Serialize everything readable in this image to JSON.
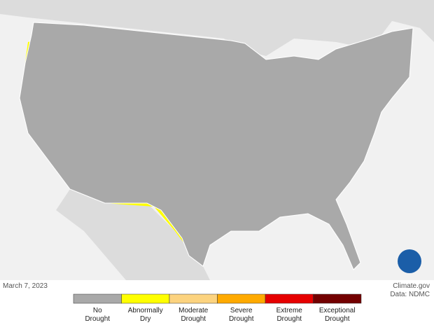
{
  "date": "March 7, 2023",
  "credit": "Climate.gov",
  "source": "Data: NDMC",
  "legend": [
    {
      "lines": [
        "No",
        "Drought"
      ],
      "color": "#a9a9a9"
    },
    {
      "lines": [
        "Abnormally",
        "Dry"
      ],
      "color": "#ffff00"
    },
    {
      "lines": [
        "Moderate",
        "Drought"
      ],
      "color": "#fcd37f"
    },
    {
      "lines": [
        "Severe",
        "Drought"
      ],
      "color": "#ffaa00"
    },
    {
      "lines": [
        "Extreme",
        "Drought"
      ],
      "color": "#e60000"
    },
    {
      "lines": [
        "Exceptional",
        "Drought"
      ],
      "color": "#730000"
    }
  ]
}
